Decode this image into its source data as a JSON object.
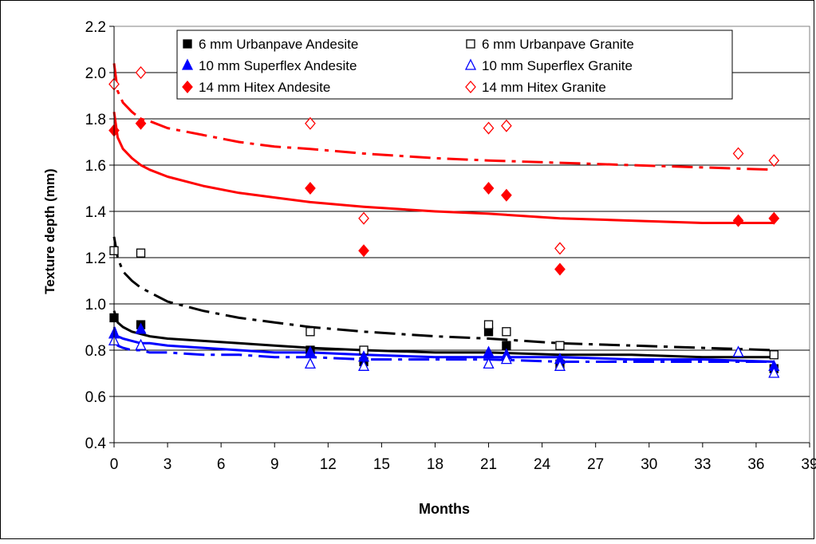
{
  "chart_data": {
    "type": "scatter",
    "xlabel": "Months",
    "ylabel": "Texture depth (mm)",
    "xlim": [
      0,
      39
    ],
    "ylim": [
      0.4,
      2.2
    ],
    "x_ticks": [
      0,
      3,
      6,
      9,
      12,
      15,
      18,
      21,
      24,
      27,
      30,
      33,
      36,
      39
    ],
    "y_ticks": [
      0.4,
      0.6,
      0.8,
      1.0,
      1.2,
      1.4,
      1.6,
      1.8,
      2.0,
      2.2
    ],
    "grid": "horizontal",
    "legend_position": "top",
    "series": [
      {
        "name": "6 mm Urbanpave Andesite",
        "color": "#000000",
        "marker": "square-filled",
        "points": [
          [
            0,
            0.94
          ],
          [
            1.5,
            0.91
          ],
          [
            11,
            0.8
          ],
          [
            14,
            0.75
          ],
          [
            21,
            0.88
          ],
          [
            22,
            0.82
          ],
          [
            25,
            0.74
          ],
          [
            37,
            0.72
          ]
        ],
        "trend": {
          "style": "solid",
          "x": [
            0,
            0.2,
            0.5,
            1,
            1.5,
            2,
            3,
            5,
            7,
            9,
            11,
            14,
            18,
            21,
            25,
            29,
            33,
            37
          ],
          "y": [
            0.97,
            0.92,
            0.9,
            0.88,
            0.87,
            0.86,
            0.85,
            0.84,
            0.83,
            0.82,
            0.81,
            0.8,
            0.79,
            0.79,
            0.78,
            0.78,
            0.77,
            0.77
          ]
        }
      },
      {
        "name": "6 mm Urbanpave Granite",
        "color": "#000000",
        "marker": "square-open",
        "points": [
          [
            0,
            1.23
          ],
          [
            1.5,
            1.22
          ],
          [
            11,
            0.88
          ],
          [
            14,
            0.8
          ],
          [
            21,
            0.91
          ],
          [
            22,
            0.88
          ],
          [
            25,
            0.82
          ],
          [
            37,
            0.78
          ]
        ],
        "trend": {
          "style": "dashed",
          "x": [
            0,
            0.2,
            0.5,
            1,
            1.5,
            2,
            3,
            5,
            7,
            9,
            11,
            14,
            18,
            21,
            25,
            29,
            33,
            37
          ],
          "y": [
            1.29,
            1.2,
            1.14,
            1.1,
            1.07,
            1.05,
            1.01,
            0.97,
            0.94,
            0.92,
            0.9,
            0.88,
            0.86,
            0.85,
            0.83,
            0.82,
            0.81,
            0.8
          ]
        }
      },
      {
        "name": "10 mm Superflex Andesite",
        "color": "#0000ff",
        "marker": "triangle-filled",
        "points": [
          [
            0,
            0.87
          ],
          [
            1.5,
            0.89
          ],
          [
            11,
            0.79
          ],
          [
            14,
            0.77
          ],
          [
            21,
            0.79
          ],
          [
            22,
            0.78
          ],
          [
            25,
            0.76
          ],
          [
            35,
            0.79
          ],
          [
            37,
            0.73
          ]
        ],
        "trend": {
          "style": "solid",
          "x": [
            0,
            0.2,
            0.5,
            1,
            1.5,
            2,
            3,
            5,
            7,
            9,
            11,
            14,
            18,
            21,
            25,
            29,
            33,
            37
          ],
          "y": [
            0.9,
            0.86,
            0.85,
            0.84,
            0.83,
            0.83,
            0.82,
            0.81,
            0.8,
            0.79,
            0.79,
            0.78,
            0.77,
            0.77,
            0.77,
            0.76,
            0.76,
            0.75
          ]
        }
      },
      {
        "name": "10 mm Superflex Granite",
        "color": "#0000ff",
        "marker": "triangle-open",
        "points": [
          [
            0,
            0.84
          ],
          [
            1.5,
            0.82
          ],
          [
            11,
            0.74
          ],
          [
            14,
            0.73
          ],
          [
            21,
            0.74
          ],
          [
            22,
            0.76
          ],
          [
            25,
            0.73
          ],
          [
            35,
            0.79
          ],
          [
            37,
            0.7
          ]
        ],
        "trend": {
          "style": "dashed",
          "x": [
            0,
            0.2,
            0.5,
            1,
            1.5,
            2,
            3,
            5,
            7,
            9,
            11,
            14,
            18,
            21,
            25,
            29,
            33,
            37
          ],
          "y": [
            0.85,
            0.82,
            0.81,
            0.8,
            0.8,
            0.79,
            0.79,
            0.78,
            0.78,
            0.77,
            0.77,
            0.76,
            0.76,
            0.76,
            0.75,
            0.75,
            0.75,
            0.75
          ]
        }
      },
      {
        "name": "14 mm Hitex Andesite",
        "color": "#ff0000",
        "marker": "diamond-filled",
        "points": [
          [
            0,
            1.75
          ],
          [
            1.5,
            1.78
          ],
          [
            11,
            1.5
          ],
          [
            14,
            1.23
          ],
          [
            21,
            1.5
          ],
          [
            22,
            1.47
          ],
          [
            25,
            1.15
          ],
          [
            35,
            1.36
          ],
          [
            37,
            1.37
          ]
        ],
        "trend": {
          "style": "solid",
          "x": [
            0,
            0.2,
            0.5,
            1,
            1.5,
            2,
            3,
            5,
            7,
            9,
            11,
            14,
            18,
            21,
            25,
            29,
            33,
            37
          ],
          "y": [
            1.83,
            1.72,
            1.67,
            1.63,
            1.6,
            1.58,
            1.55,
            1.51,
            1.48,
            1.46,
            1.44,
            1.42,
            1.4,
            1.39,
            1.37,
            1.36,
            1.35,
            1.35
          ]
        }
      },
      {
        "name": "14 mm Hitex Granite",
        "color": "#ff0000",
        "marker": "diamond-open",
        "points": [
          [
            0,
            1.95
          ],
          [
            1.5,
            2.0
          ],
          [
            11,
            1.78
          ],
          [
            14,
            1.37
          ],
          [
            21,
            1.76
          ],
          [
            22,
            1.77
          ],
          [
            25,
            1.24
          ],
          [
            35,
            1.65
          ],
          [
            37,
            1.62
          ]
        ],
        "trend": {
          "style": "dashed",
          "x": [
            0,
            0.2,
            0.5,
            1,
            1.5,
            2,
            3,
            5,
            7,
            9,
            11,
            14,
            18,
            21,
            25,
            29,
            33,
            37
          ],
          "y": [
            2.04,
            1.92,
            1.87,
            1.83,
            1.8,
            1.79,
            1.76,
            1.73,
            1.7,
            1.68,
            1.67,
            1.65,
            1.63,
            1.62,
            1.61,
            1.6,
            1.59,
            1.58
          ]
        }
      }
    ]
  }
}
